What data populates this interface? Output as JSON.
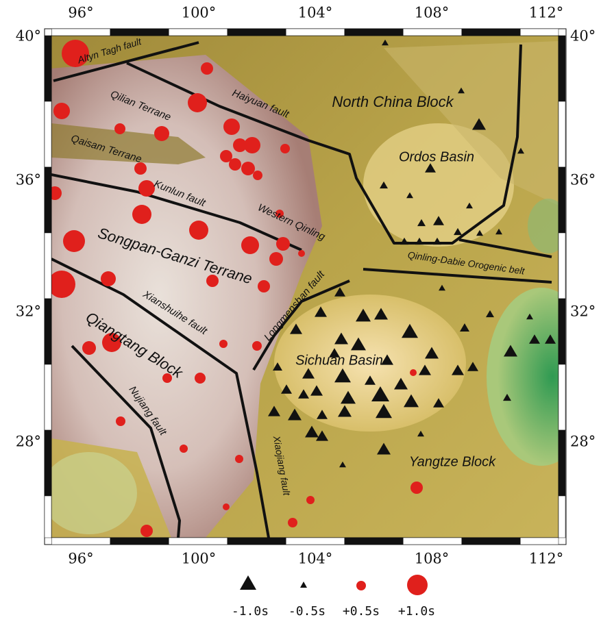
{
  "axes": {
    "top_ticks": [
      "96°",
      "100°",
      "104°",
      "108°",
      "112°"
    ],
    "bottom_ticks": [
      "96°",
      "100°",
      "104°",
      "108°",
      "112°"
    ],
    "left_ticks": [
      "40°",
      "36°",
      "32°",
      "28°"
    ],
    "right_ticks": [
      "40°",
      "36°",
      "32°",
      "28°"
    ]
  },
  "labels": [
    "Altyn Tagh fault",
    "Qilian Terrane",
    "Haiyuan fault",
    "North China Block",
    "Ordos Basin",
    "Qaisam Terrane",
    "Kunlun fault",
    "Western Qinling",
    "Songpan-Ganzi Terrane",
    "Qinling-Dabie Orogenic belt",
    "Longmenshan fault",
    "Xianshuihe fault",
    "Qiangtang Block",
    "Sichuan Basin",
    "Nujiang fault",
    "Xiaojiang fault",
    "Yangtze Block"
  ],
  "legend": [
    "-1.0s",
    "-0.5s",
    "+0.5s",
    "+1.0s"
  ]
}
